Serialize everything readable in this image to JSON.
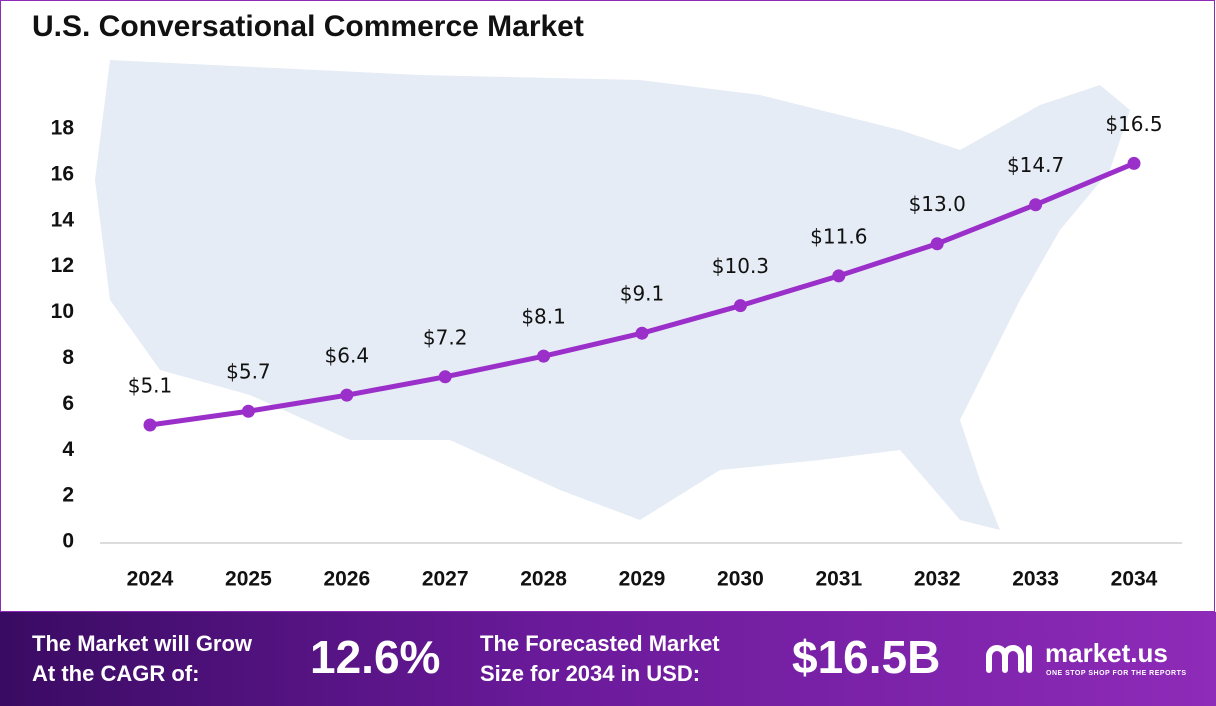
{
  "chart_data": {
    "type": "line",
    "title": "U.S. Conversational Commerce Market",
    "categories": [
      "2024",
      "2025",
      "2026",
      "2027",
      "2028",
      "2029",
      "2030",
      "2031",
      "2032",
      "2033",
      "2034"
    ],
    "values": [
      5.1,
      5.7,
      6.4,
      7.2,
      8.1,
      9.1,
      10.3,
      11.6,
      13.0,
      14.7,
      16.5
    ],
    "value_labels": [
      "$5.1",
      "$5.7",
      "$6.4",
      "$7.2",
      "$8.1",
      "$9.1",
      "$10.3",
      "$11.6",
      "$13.0",
      "$14.7",
      "$16.5"
    ],
    "color": "#9b2fc9",
    "ylim": [
      0,
      18
    ],
    "yticks": [
      0,
      2,
      4,
      6,
      8,
      10,
      12,
      14,
      16,
      18
    ],
    "grid": false
  },
  "footer": {
    "cagr_text": [
      "The Market will Grow",
      "At the CAGR of:"
    ],
    "cagr": "12.6%",
    "size_text": [
      "The Forecasted Market",
      "Size for 2034 in USD:"
    ],
    "size": "$16.5B",
    "brand": "market.us",
    "tagline": "ONE STOP SHOP FOR THE REPORTS"
  }
}
